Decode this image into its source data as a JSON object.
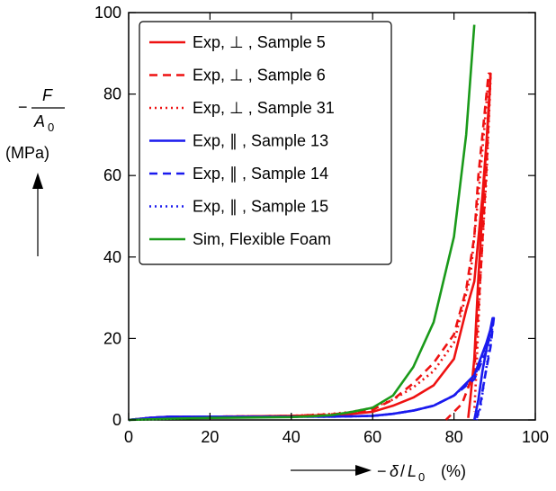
{
  "chart_data": {
    "type": "line",
    "title": "",
    "xlim": [
      0,
      100
    ],
    "ylim": [
      0,
      100
    ],
    "x_ticks": [
      0,
      20,
      40,
      60,
      80,
      100
    ],
    "y_ticks": [
      0,
      20,
      40,
      60,
      80,
      100
    ],
    "x_label": {
      "minus": "−",
      "symbol": "δ",
      "slash": "/",
      "L": "L",
      "sub": "0",
      "unit": "(%)"
    },
    "y_label": {
      "minus": "−",
      "numerator": "F",
      "denominator": "A",
      "sub": "0",
      "unit": "(MPa)"
    },
    "grid": false,
    "legend_position": "top-left",
    "series": [
      {
        "name": "Exp,  ⊥ , Sample 5",
        "color": "#ee1111",
        "style": "solid",
        "points": [
          [
            0,
            0
          ],
          [
            5,
            0.5
          ],
          [
            10,
            0.8
          ],
          [
            20,
            0.8
          ],
          [
            30,
            0.9
          ],
          [
            40,
            1
          ],
          [
            50,
            1.2
          ],
          [
            55,
            1.5
          ],
          [
            60,
            2
          ],
          [
            65,
            3.5
          ],
          [
            70,
            5.5
          ],
          [
            75,
            8.5
          ],
          [
            80,
            15
          ],
          [
            83,
            27
          ],
          [
            85,
            34
          ],
          [
            87,
            55
          ],
          [
            88.5,
            75
          ],
          [
            89,
            85
          ],
          [
            89,
            85
          ],
          [
            87.5,
            60
          ],
          [
            86,
            35
          ],
          [
            85,
            15
          ],
          [
            84,
            5
          ],
          [
            83.5,
            0.5
          ]
        ]
      },
      {
        "name": "Exp,  ⊥ , Sample 6",
        "color": "#ee1111",
        "style": "dashed",
        "points": [
          [
            0,
            0
          ],
          [
            5,
            0.5
          ],
          [
            10,
            0.8
          ],
          [
            20,
            0.8
          ],
          [
            30,
            0.9
          ],
          [
            40,
            1
          ],
          [
            50,
            1.4
          ],
          [
            55,
            1.8
          ],
          [
            60,
            2.5
          ],
          [
            65,
            5
          ],
          [
            70,
            9
          ],
          [
            75,
            14
          ],
          [
            80,
            21
          ],
          [
            83,
            32
          ],
          [
            85,
            45
          ],
          [
            86,
            60
          ],
          [
            87.5,
            75
          ],
          [
            88.5,
            85
          ],
          [
            89,
            85
          ],
          [
            88,
            62
          ],
          [
            86.5,
            35
          ],
          [
            85,
            12
          ],
          [
            82,
            4
          ],
          [
            78,
            0
          ]
        ]
      },
      {
        "name": "Exp,  ⊥ , Sample 31",
        "color": "#ee1111",
        "style": "dotted",
        "points": [
          [
            0,
            0
          ],
          [
            5,
            0.5
          ],
          [
            10,
            0.8
          ],
          [
            20,
            0.8
          ],
          [
            30,
            0.9
          ],
          [
            40,
            1
          ],
          [
            50,
            1.5
          ],
          [
            55,
            2
          ],
          [
            60,
            3
          ],
          [
            65,
            5
          ],
          [
            70,
            8
          ],
          [
            75,
            12
          ],
          [
            80,
            19
          ],
          [
            84,
            35
          ],
          [
            86,
            55
          ],
          [
            87.5,
            72
          ],
          [
            88.5,
            84
          ],
          [
            89,
            84
          ],
          [
            88,
            60
          ],
          [
            86.5,
            35
          ],
          [
            85.5,
            12
          ],
          [
            85,
            2
          ]
        ]
      },
      {
        "name": "Exp,  ∥ , Sample 13",
        "color": "#1a1aee",
        "style": "solid",
        "points": [
          [
            0,
            0
          ],
          [
            5,
            0.5
          ],
          [
            10,
            0.8
          ],
          [
            20,
            0.8
          ],
          [
            30,
            0.8
          ],
          [
            40,
            0.8
          ],
          [
            50,
            0.8
          ],
          [
            55,
            0.9
          ],
          [
            60,
            1
          ],
          [
            65,
            1.5
          ],
          [
            70,
            2.3
          ],
          [
            75,
            3.5
          ],
          [
            80,
            6
          ],
          [
            85,
            11
          ],
          [
            88,
            19
          ],
          [
            89.5,
            24
          ],
          [
            89.5,
            25
          ],
          [
            88.5,
            20
          ],
          [
            87,
            12
          ],
          [
            86,
            5
          ],
          [
            85,
            0
          ]
        ]
      },
      {
        "name": "Exp,  ∥ , Sample 14",
        "color": "#1a1aee",
        "style": "dashed",
        "points": [
          [
            0,
            0
          ],
          [
            5,
            0.5
          ],
          [
            10,
            0.8
          ],
          [
            20,
            0.8
          ],
          [
            30,
            0.8
          ],
          [
            40,
            0.8
          ],
          [
            50,
            0.8
          ],
          [
            55,
            0.9
          ],
          [
            60,
            1
          ],
          [
            65,
            1.5
          ],
          [
            70,
            2.3
          ],
          [
            75,
            3.5
          ],
          [
            80,
            6
          ],
          [
            85,
            10
          ],
          [
            88,
            17
          ],
          [
            89.5,
            24
          ],
          [
            89.8,
            25
          ],
          [
            89,
            18
          ],
          [
            87.5,
            10
          ],
          [
            86.5,
            4
          ],
          [
            85.5,
            0
          ]
        ]
      },
      {
        "name": "Exp,  ∥ , Sample 15",
        "color": "#1a1aee",
        "style": "dotted",
        "points": [
          [
            0,
            0
          ],
          [
            5,
            0.5
          ],
          [
            10,
            0.8
          ],
          [
            20,
            0.8
          ],
          [
            30,
            0.8
          ],
          [
            40,
            0.8
          ],
          [
            50,
            0.8
          ],
          [
            55,
            0.9
          ],
          [
            60,
            1
          ],
          [
            65,
            1.5
          ],
          [
            70,
            2.3
          ],
          [
            75,
            3.5
          ],
          [
            80,
            6
          ],
          [
            85,
            10.5
          ],
          [
            88,
            18
          ],
          [
            89.5,
            23
          ],
          [
            89.6,
            24
          ],
          [
            88.8,
            18
          ],
          [
            87.5,
            10
          ],
          [
            86.5,
            3
          ],
          [
            85.5,
            0
          ]
        ]
      },
      {
        "name": "Sim,  Flexible Foam",
        "color": "#1a9a1a",
        "style": "solid",
        "points": [
          [
            0,
            0
          ],
          [
            10,
            0.3
          ],
          [
            20,
            0.5
          ],
          [
            30,
            0.6
          ],
          [
            40,
            0.7
          ],
          [
            45,
            0.9
          ],
          [
            50,
            1.2
          ],
          [
            55,
            2
          ],
          [
            60,
            3
          ],
          [
            65,
            6
          ],
          [
            70,
            13
          ],
          [
            75,
            24
          ],
          [
            80,
            45
          ],
          [
            83,
            70
          ],
          [
            85,
            97
          ]
        ]
      }
    ]
  }
}
